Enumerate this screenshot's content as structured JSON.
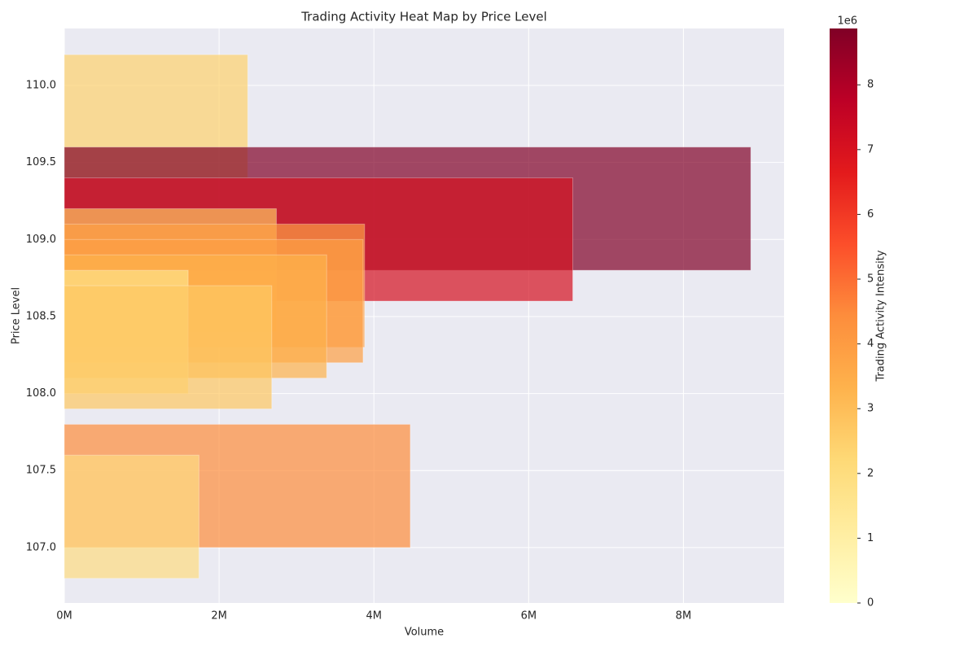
{
  "chart_data": {
    "type": "hbar",
    "title": "Trading Activity Heat Map by Price Level",
    "xlabel": "Volume",
    "ylabel": "Price Level",
    "y": [
      109.8,
      109.2,
      109.0,
      108.8,
      108.7,
      108.6,
      108.5,
      108.4,
      108.3,
      107.4,
      107.2
    ],
    "values": [
      2370000,
      8870000,
      6570000,
      2740000,
      3880000,
      3860000,
      3390000,
      1600000,
      2680000,
      4470000,
      1740000
    ],
    "colors": [
      "#fed26e",
      "#800026",
      "#d41020",
      "#fec561",
      "#fd9f44",
      "#fd9f44",
      "#feb24c",
      "#fee187",
      "#fec763",
      "#fd8d3c",
      "#fedc82"
    ],
    "bar_height": 0.8,
    "alpha": 0.7,
    "xlim": [
      0,
      9300000
    ],
    "ylim": [
      106.64,
      110.37
    ],
    "xticks": [
      {
        "value": 0,
        "label": "0M"
      },
      {
        "value": 2000000,
        "label": "2M"
      },
      {
        "value": 4000000,
        "label": "4M"
      },
      {
        "value": 6000000,
        "label": "6M"
      },
      {
        "value": 8000000,
        "label": "8M"
      }
    ],
    "yticks": [
      {
        "value": 107,
        "label": "107.0"
      },
      {
        "value": 107.5,
        "label": "107.5"
      },
      {
        "value": 108,
        "label": "108.0"
      },
      {
        "value": 108.5,
        "label": "108.5"
      },
      {
        "value": 109,
        "label": "109.0"
      },
      {
        "value": 109.5,
        "label": "109.5"
      },
      {
        "value": 110,
        "label": "110.0"
      }
    ],
    "grid": true,
    "colorbar": {
      "label": "Trading Activity Intensity",
      "offset_label": "1e6",
      "lim": [
        0,
        8870000
      ],
      "ticks": [
        {
          "value": 0,
          "label": "0"
        },
        {
          "value": 1000000,
          "label": "1"
        },
        {
          "value": 2000000,
          "label": "2"
        },
        {
          "value": 3000000,
          "label": "3"
        },
        {
          "value": 4000000,
          "label": "4"
        },
        {
          "value": 5000000,
          "label": "5"
        },
        {
          "value": 6000000,
          "label": "6"
        },
        {
          "value": 7000000,
          "label": "7"
        },
        {
          "value": 8000000,
          "label": "8"
        }
      ],
      "colormap": [
        "#ffffcc",
        "#ffeda0",
        "#fed976",
        "#feb24c",
        "#fd8d3c",
        "#fc4e2a",
        "#e31a1c",
        "#bd0026",
        "#800026"
      ]
    }
  }
}
